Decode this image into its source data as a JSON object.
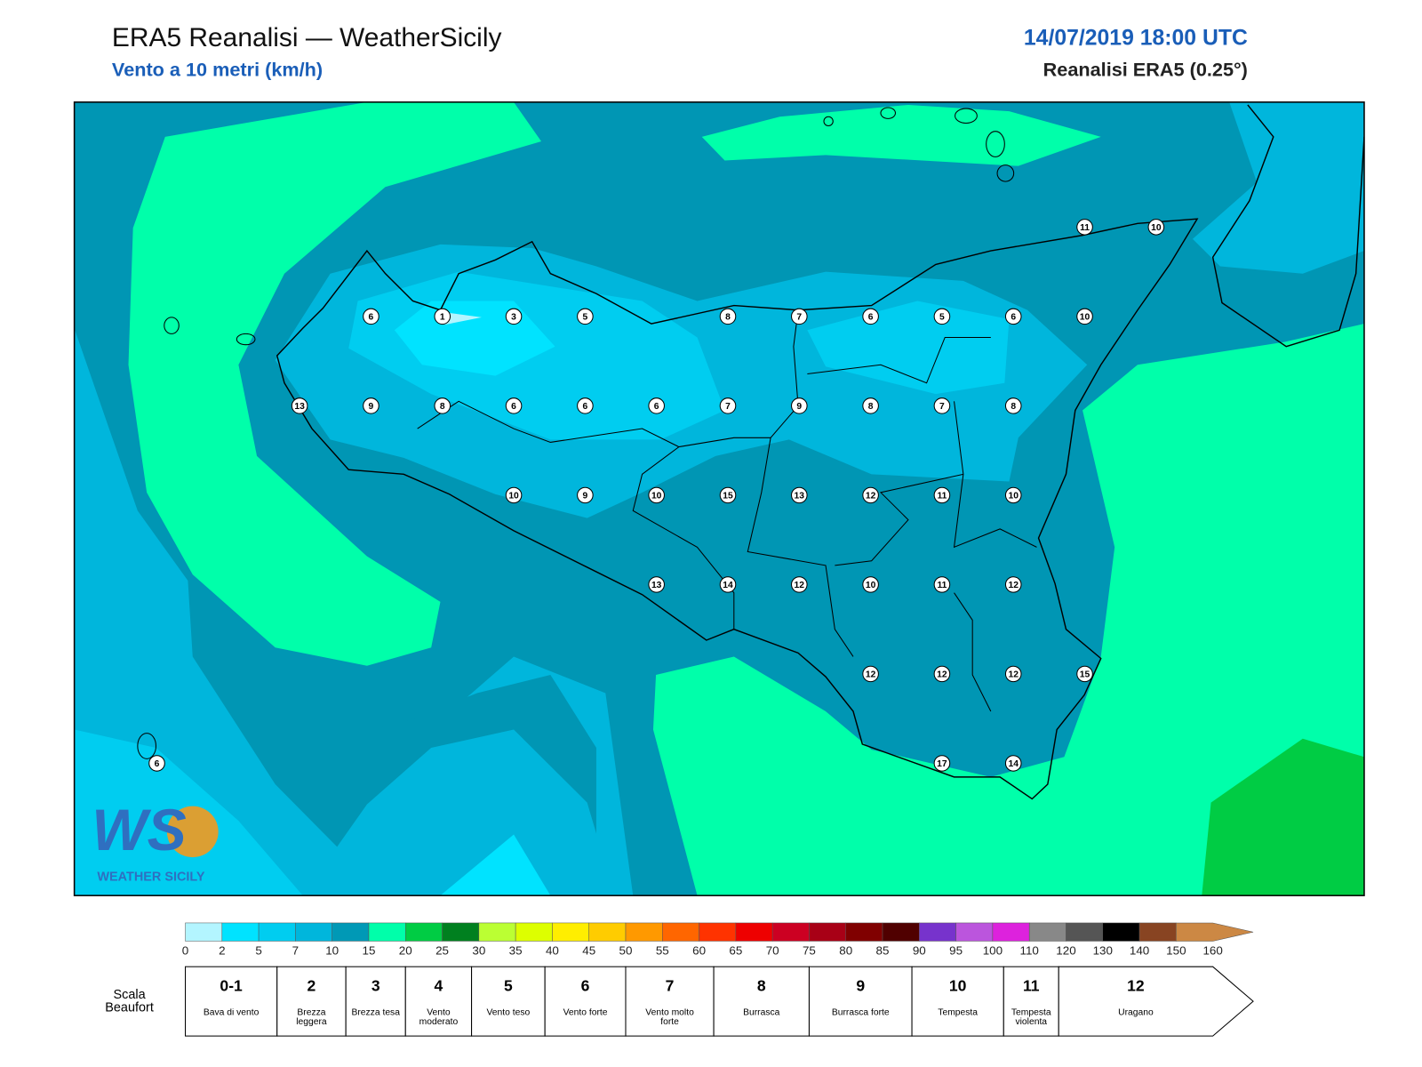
{
  "header": {
    "title": "ERA5 Reanalisi — WeatherSicily",
    "subtitle": "Vento a 10 metri (km/h)",
    "datetime": "14/07/2019 18:00 UTC",
    "source": "Reanalisi ERA5 (0.25°)"
  },
  "map": {
    "stations": [
      11,
      10,
      6,
      1,
      3,
      5,
      8,
      7,
      6,
      5,
      6,
      10,
      13,
      9,
      8,
      6,
      6,
      6,
      7,
      9,
      8,
      7,
      8,
      10,
      9,
      10,
      15,
      13,
      12,
      11,
      10,
      13,
      14,
      12,
      10,
      11,
      12,
      12,
      12,
      12,
      15,
      6,
      17,
      14
    ]
  },
  "logo": {
    "mark": "WS",
    "name": "WEATHER SICILY"
  },
  "colorbar": {
    "ticks": [
      0,
      2,
      5,
      7,
      10,
      15,
      20,
      25,
      30,
      35,
      40,
      45,
      50,
      55,
      60,
      65,
      70,
      75,
      80,
      85,
      90,
      95,
      100,
      110,
      120,
      130,
      140,
      150,
      160
    ],
    "colors": [
      "#b3f5ff",
      "#00e3ff",
      "#00cdf0",
      "#00b6dc",
      "#0099b6",
      "#00ffaa",
      "#00cc44",
      "#00801f",
      "#bbff33",
      "#ddff00",
      "#ffee00",
      "#ffcc00",
      "#ff9900",
      "#ff6600",
      "#ff3300",
      "#ee0000",
      "#cc0022",
      "#a80016",
      "#800000",
      "#500000",
      "#7733cc",
      "#bb55dd",
      "#dd22dd",
      "#888888",
      "#555555",
      "#000000",
      "#884422",
      "#cc8844"
    ]
  },
  "beaufort": {
    "label": "Scala Beaufort",
    "levels": [
      {
        "force": "0-1",
        "description": "Bava di vento"
      },
      {
        "force": "2",
        "description": "Brezza leggera"
      },
      {
        "force": "3",
        "description": "Brezza tesa"
      },
      {
        "force": "4",
        "description": "Vento moderato"
      },
      {
        "force": "5",
        "description": "Vento teso"
      },
      {
        "force": "6",
        "description": "Vento forte"
      },
      {
        "force": "7",
        "description": "Vento molto forte"
      },
      {
        "force": "8",
        "description": "Burrasca"
      },
      {
        "force": "9",
        "description": "Burrasca forte"
      },
      {
        "force": "10",
        "description": "Tempesta"
      },
      {
        "force": "11",
        "description": "Tempesta violenta"
      },
      {
        "force": "12",
        "description": "Uragano"
      }
    ]
  }
}
